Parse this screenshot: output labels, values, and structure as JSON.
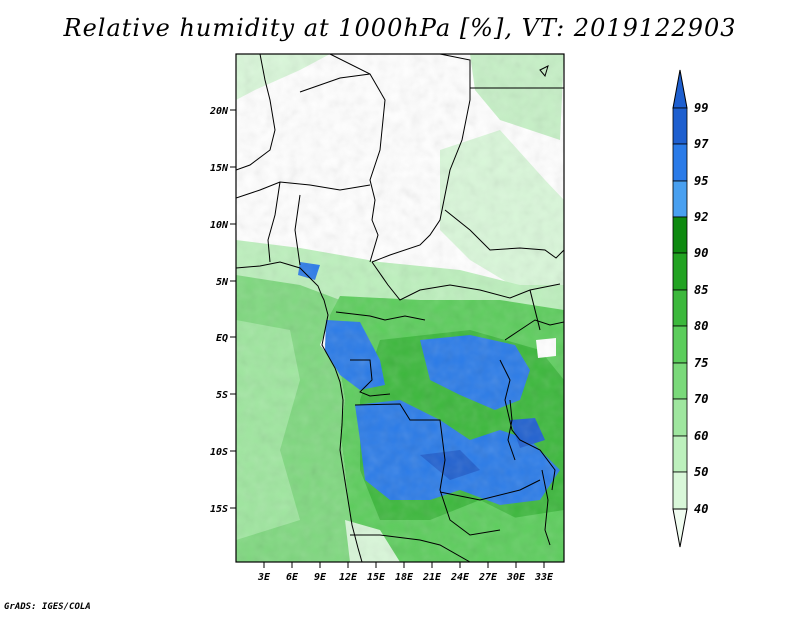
{
  "title": "Relative humidity at 1000hPa [%], VT: 2019122903",
  "footer": "GrADS: IGES/COLA",
  "lat_ticks": [
    "20N",
    "15N",
    "10N",
    "5N",
    "EQ",
    "5S",
    "10S",
    "15S"
  ],
  "lon_ticks": [
    "3E",
    "6E",
    "9E",
    "12E",
    "15E",
    "18E",
    "21E",
    "24E",
    "27E",
    "30E",
    "33E"
  ],
  "colorbar": {
    "labels": [
      "99",
      "97",
      "95",
      "92",
      "90",
      "85",
      "80",
      "75",
      "70",
      "60",
      "50",
      "40"
    ],
    "colors": [
      "#1e5fcf",
      "#2a7be8",
      "#49a0f0",
      "#0e8a10",
      "#22a322",
      "#3cb83c",
      "#5ccd5c",
      "#7ad97a",
      "#9fe69f",
      "#bdf0bd",
      "#d9f7d9",
      "#f0fcf0"
    ]
  },
  "palette": {
    "land_light": "#ffffff",
    "ocean": "#7fd87f",
    "border": "#000000"
  }
}
